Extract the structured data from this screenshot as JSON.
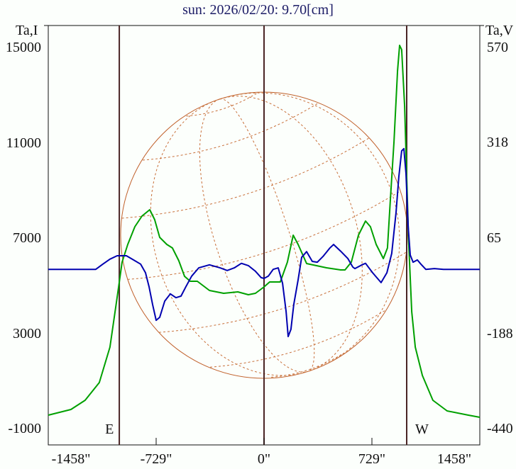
{
  "chart_data": {
    "type": "line",
    "title": "sun: 2026/02/20: 9.70[cm]",
    "xlabel": "",
    "ylabel_left": "Ta,I",
    "ylabel_right": "Ta,V",
    "xlim": [
      -1458,
      1458
    ],
    "ylim_left": [
      -1000,
      15000
    ],
    "ylim_right": [
      -440,
      570
    ],
    "x_ticks": [
      {
        "value": -1458,
        "label": "-1458\""
      },
      {
        "value": -729,
        "label": "-729\""
      },
      {
        "value": 0,
        "label": "0\""
      },
      {
        "value": 729,
        "label": "729\""
      },
      {
        "value": 1458,
        "label": "1458\""
      }
    ],
    "left_ticks": [
      {
        "value": 15000,
        "label": "15000"
      },
      {
        "value": 11000,
        "label": "11000"
      },
      {
        "value": 7000,
        "label": "7000"
      },
      {
        "value": 3000,
        "label": "3000"
      },
      {
        "value": -1000,
        "label": "-1000"
      }
    ],
    "right_ticks": [
      {
        "value": 570,
        "label": "570"
      },
      {
        "value": 318,
        "label": "318"
      },
      {
        "value": 65,
        "label": "65"
      },
      {
        "value": -188,
        "label": "-188"
      },
      {
        "value": -440,
        "label": "-440"
      }
    ],
    "markers": [
      {
        "value": -978,
        "label": "E"
      },
      {
        "value": 0,
        "label": ""
      },
      {
        "value": 964,
        "label": "W"
      }
    ],
    "series": [
      {
        "name": "I",
        "axis": "left",
        "color": "#00a000",
        "x": [
          -1458,
          -1305,
          -1209,
          -1113,
          -1041,
          -993,
          -959,
          -921,
          -873,
          -825,
          -772,
          -739,
          -705,
          -657,
          -619,
          -576,
          -537,
          -499,
          -451,
          -369,
          -273,
          -177,
          -106,
          -58,
          0,
          38,
          110,
          158,
          197,
          230,
          288,
          422,
          518,
          547,
          590,
          638,
          686,
          719,
          758,
          806,
          834,
          854,
          878,
          902,
          916,
          930,
          950,
          964,
          978,
          998,
          1022,
          1070,
          1141,
          1237,
          1381,
          1458
        ],
        "y": [
          -435,
          -197,
          189,
          933,
          2420,
          4502,
          5989,
          6732,
          7476,
          7922,
          8190,
          7773,
          7030,
          6732,
          6584,
          6048,
          5394,
          5186,
          5186,
          4799,
          4680,
          4740,
          4621,
          4680,
          4948,
          5156,
          5156,
          5989,
          7119,
          6732,
          5929,
          5751,
          5662,
          5662,
          5989,
          7119,
          7714,
          7476,
          6732,
          6137,
          6584,
          8665,
          11045,
          14019,
          15089,
          14911,
          12532,
          9558,
          6732,
          3907,
          2420,
          1230,
          189,
          -257,
          -435,
          -524
        ]
      },
      {
        "name": "V",
        "axis": "right",
        "color": "#0000b0",
        "x": [
          -1458,
          -1137,
          -1089,
          -1041,
          -993,
          -930,
          -882,
          -834,
          -801,
          -777,
          -753,
          -729,
          -705,
          -671,
          -633,
          -595,
          -561,
          -528,
          -489,
          -441,
          -369,
          -297,
          -249,
          -201,
          -153,
          -106,
          -58,
          -19,
          0,
          29,
          62,
          96,
          125,
          149,
          163,
          182,
          201,
          230,
          254,
          288,
          326,
          360,
          398,
          446,
          470,
          518,
          566,
          600,
          614,
          662,
          686,
          734,
          791,
          830,
          863,
          892,
          911,
          930,
          945,
          959,
          974,
          988,
          1007,
          1036,
          1060,
          1093,
          1151,
          1213,
          1458
        ],
        "y": [
          -18,
          -18,
          -4,
          9,
          18,
          18,
          7,
          -4,
          -27,
          -64,
          -111,
          -153,
          -145,
          -102,
          -83,
          -93,
          -89,
          -64,
          -36,
          -14,
          -6,
          -14,
          -21,
          -14,
          -2,
          -8,
          -23,
          -40,
          -42,
          -36,
          -18,
          -14,
          -55,
          -130,
          -196,
          -177,
          -111,
          -46,
          14,
          29,
          3,
          1,
          16,
          39,
          48,
          30,
          11,
          -12,
          -16,
          -6,
          -2,
          -27,
          -53,
          -27,
          24,
          133,
          227,
          296,
          302,
          236,
          95,
          20,
          1,
          7,
          -4,
          -18,
          -16,
          -18,
          -18
        ]
      }
    ]
  }
}
